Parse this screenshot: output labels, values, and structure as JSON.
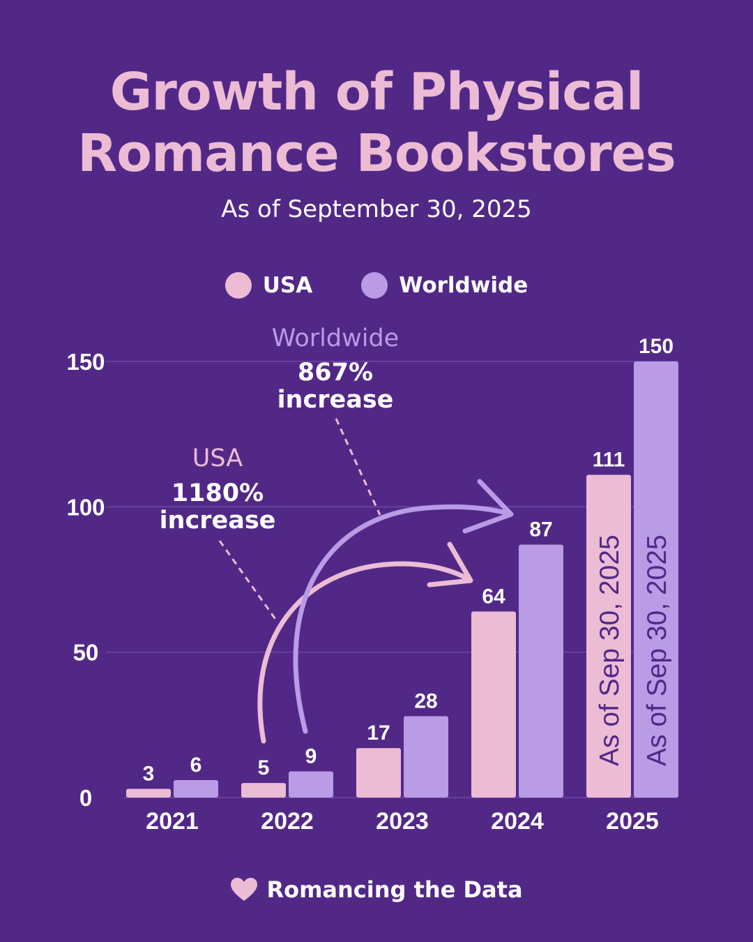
{
  "header": {
    "title_line1": "Growth of Physical",
    "title_line2": "Romance Bookstores",
    "subtitle": "As of September 30, 2025"
  },
  "legend": [
    {
      "label": "USA",
      "color": "#ecbcd5"
    },
    {
      "label": "Worldwide",
      "color": "#b99be6"
    }
  ],
  "annotations": {
    "usa": {
      "label": "USA",
      "value": "1180%",
      "text": "increase"
    },
    "worldwide": {
      "label": "Worldwide",
      "value": "867%",
      "text": "increase"
    },
    "partial_year_note": "As of Sep 30, 2025"
  },
  "footer": {
    "brand": "Romancing the Data",
    "icon": "heart-icon"
  },
  "colors": {
    "background": "#522887",
    "usa": "#ecbcd5",
    "worldwide": "#b99be6",
    "title": "#ecbcd5",
    "vertical_text": "#522887"
  },
  "chart_data": {
    "type": "bar",
    "categories": [
      "2021",
      "2022",
      "2023",
      "2024",
      "2025"
    ],
    "series": [
      {
        "name": "USA",
        "values": [
          3,
          5,
          17,
          64,
          111
        ]
      },
      {
        "name": "Worldwide",
        "values": [
          6,
          9,
          28,
          87,
          150
        ]
      }
    ],
    "ylim": [
      0,
      150
    ],
    "yticks": [
      0,
      50,
      100,
      150
    ],
    "grid": true,
    "legend_position": "top-center"
  }
}
